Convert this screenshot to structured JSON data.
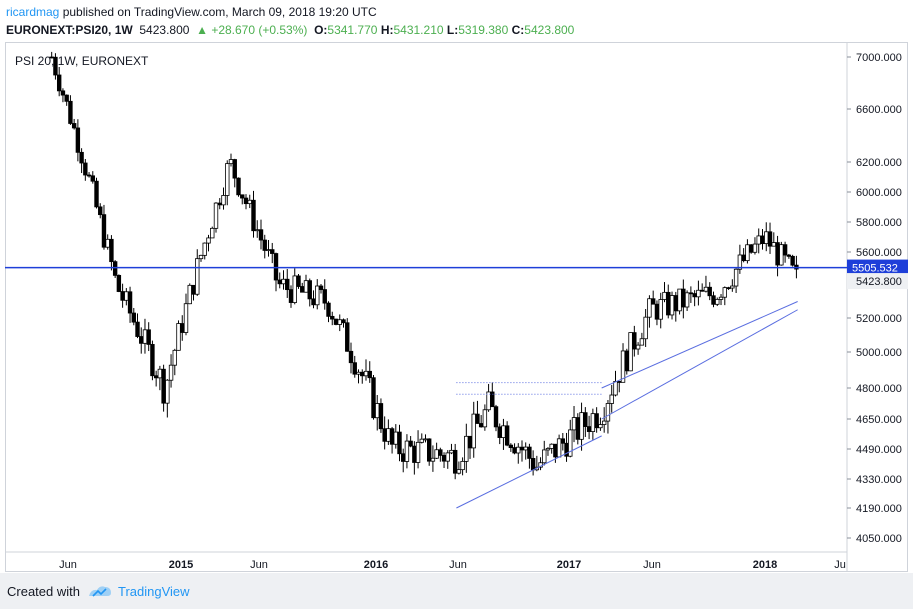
{
  "header": {
    "username": "ricardmag",
    "published_text": " published on TradingView.com, March 09, 2018 19:20 UTC",
    "symbol": "EURONEXT:PSI20, 1W",
    "last": "5423.800",
    "change": "▲ +28.670 (+0.53%)",
    "o_label": "O:",
    "o_value": "5341.770",
    "h_label": "H:",
    "h_value": "5431.210",
    "l_label": "L:",
    "l_value": "5319.380",
    "c_label": "C:",
    "c_value": "5423.800"
  },
  "legend": {
    "series_label": "PSI 20, 1W, EURONEXT"
  },
  "footer": {
    "created_with": "Created with",
    "brand": "TradingView"
  },
  "colors": {
    "axis_line": "#cfd3da",
    "hline": "#1e3fd9",
    "trend": "#5a6ee0",
    "candle": "#000000",
    "up_text": "#4caf50",
    "brand": "#2196f3"
  },
  "chart_data": {
    "type": "candlestick",
    "x_tick_labels": [
      "Jun",
      "2015",
      "Jun",
      "2016",
      "Jun",
      "2017",
      "Jun",
      "2018",
      "Ju"
    ],
    "y_tick_labels": [
      "7000.000",
      "6600.000",
      "6200.000",
      "6000.000",
      "5800.000",
      "5600.000",
      "5200.000",
      "5000.000",
      "4800.000",
      "4650.000",
      "4490.000",
      "4330.000",
      "4190.000",
      "4050.000"
    ],
    "ylim": [
      4000,
      7050
    ],
    "horizontal_line": {
      "value": 5505.532,
      "label": "5505.532"
    },
    "last_price_label": "5423.800",
    "grid": false,
    "anchor_points": [
      {
        "date": "2014-05",
        "close": 7000
      },
      {
        "date": "2014-09",
        "close": 5400
      },
      {
        "date": "2014-12",
        "close": 4800
      },
      {
        "date": "2015-04",
        "close": 6200
      },
      {
        "date": "2015-07",
        "close": 5400
      },
      {
        "date": "2015-10",
        "close": 5300
      },
      {
        "date": "2016-02",
        "close": 4500
      },
      {
        "date": "2016-06",
        "close": 4450
      },
      {
        "date": "2016-08",
        "close": 4700
      },
      {
        "date": "2016-11",
        "close": 4400
      },
      {
        "date": "2017-03",
        "close": 4700
      },
      {
        "date": "2017-06",
        "close": 5250
      },
      {
        "date": "2017-10",
        "close": 5350
      },
      {
        "date": "2018-01",
        "close": 5700
      },
      {
        "date": "2018-03",
        "close": 5423.8
      }
    ],
    "trendlines": [
      {
        "from": {
          "date": "2016-06",
          "value": 4190
        },
        "to": {
          "date": "2017-03",
          "value": 4560
        },
        "style": "solid"
      },
      {
        "from": {
          "date": "2017-03",
          "value": 4800
        },
        "to": {
          "date": "2018-03",
          "value": 5300
        },
        "style": "solid"
      },
      {
        "from": {
          "date": "2017-03",
          "value": 4650
        },
        "to": {
          "date": "2018-03",
          "value": 5250
        },
        "style": "solid"
      },
      {
        "from": {
          "date": "2016-06",
          "value": 4770
        },
        "to": {
          "date": "2017-03",
          "value": 4770
        },
        "style": "dotted"
      },
      {
        "from": {
          "date": "2016-06",
          "value": 4830
        },
        "to": {
          "date": "2017-03",
          "value": 4830
        },
        "style": "dotted"
      }
    ]
  }
}
